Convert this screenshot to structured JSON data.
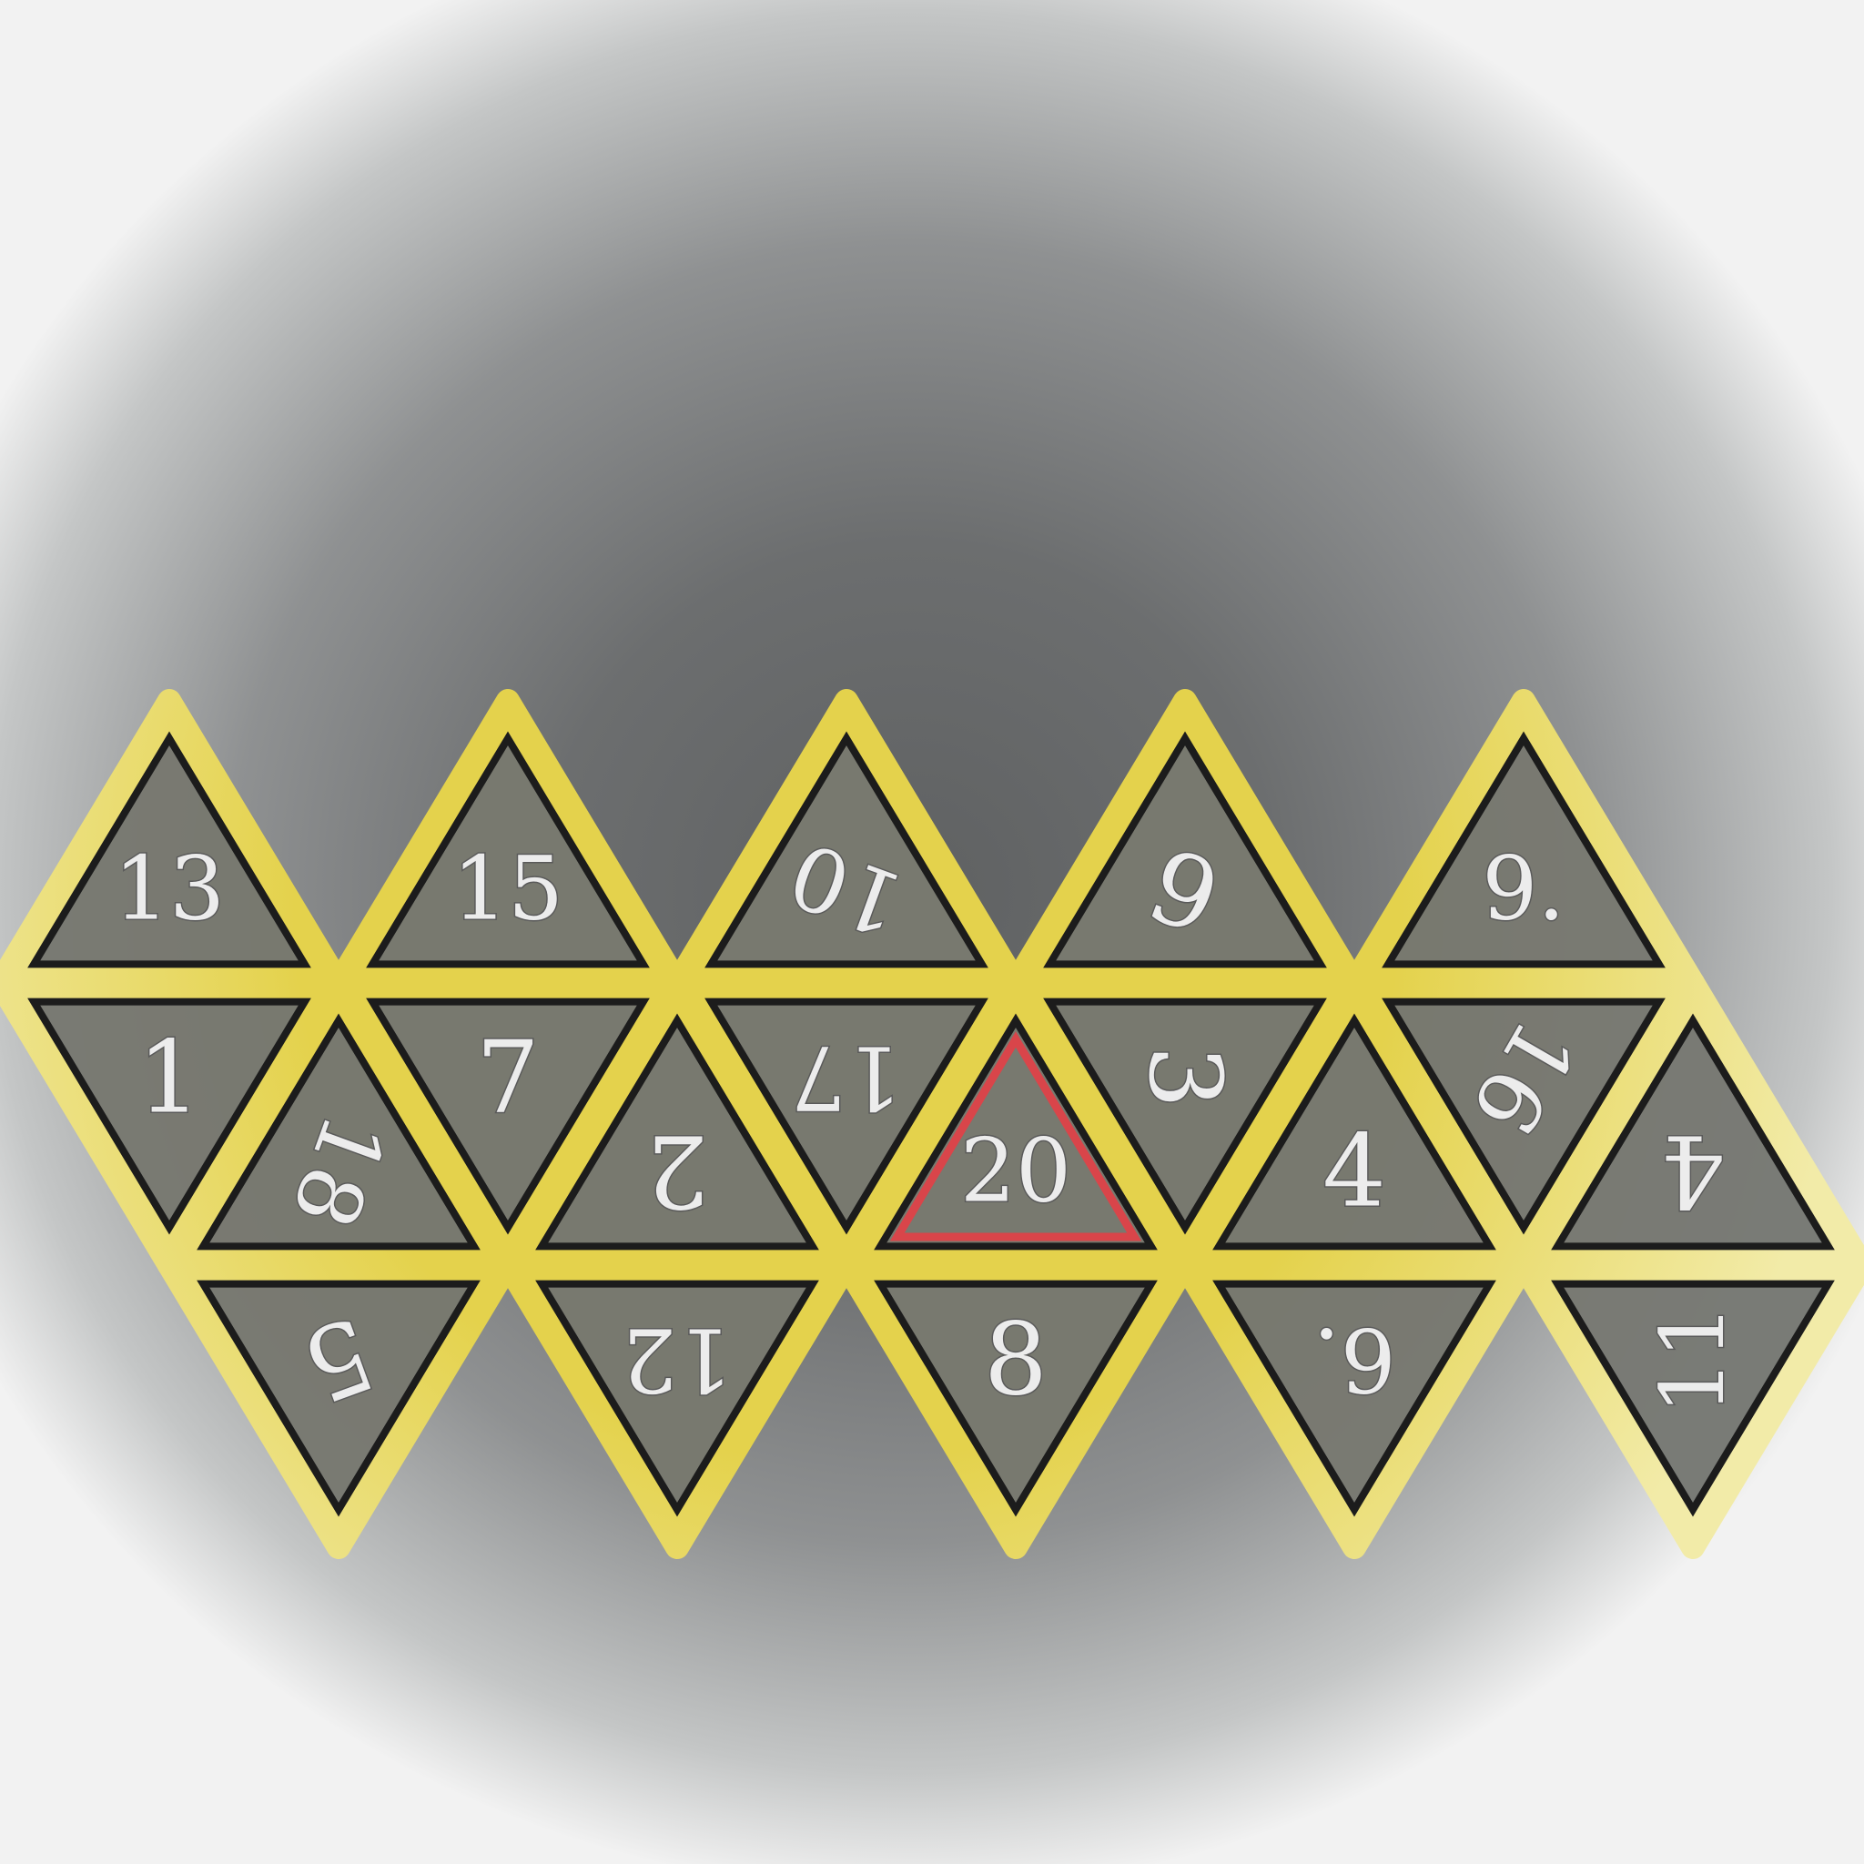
{
  "net": {
    "border_color": "#e4d24c",
    "border_color_faded": "#f2eba8",
    "face_fill": "#6f7172",
    "face_outline": "#1c1c1c",
    "highlight_outline": "#d9454a",
    "highlight_face": "20"
  },
  "faces": {
    "top": [
      {
        "label": "13",
        "rotation": 0
      },
      {
        "label": "15",
        "rotation": 0
      },
      {
        "label": "10",
        "rotation": 200
      },
      {
        "label": "6",
        "rotation": 200
      },
      {
        "label": "9.",
        "rotation": 0
      }
    ],
    "middle_down": [
      {
        "label": "1",
        "rotation": 0
      },
      {
        "label": "7",
        "rotation": 0
      },
      {
        "label": "17",
        "rotation": 180
      },
      {
        "label": "3",
        "rotation": 90
      },
      {
        "label": "16",
        "rotation": 120
      }
    ],
    "middle_up": [
      {
        "label": "18",
        "rotation": 110
      },
      {
        "label": "2",
        "rotation": 180
      },
      {
        "label": "20",
        "rotation": 0
      },
      {
        "label": "4",
        "rotation": 0
      },
      {
        "label": "4",
        "rotation": 180
      }
    ],
    "bottom": [
      {
        "label": "5",
        "rotation": 160
      },
      {
        "label": "12",
        "rotation": 180
      },
      {
        "label": "8",
        "rotation": 0
      },
      {
        "label": "6.",
        "rotation": 180
      },
      {
        "label": "11",
        "rotation": 270
      }
    ]
  }
}
